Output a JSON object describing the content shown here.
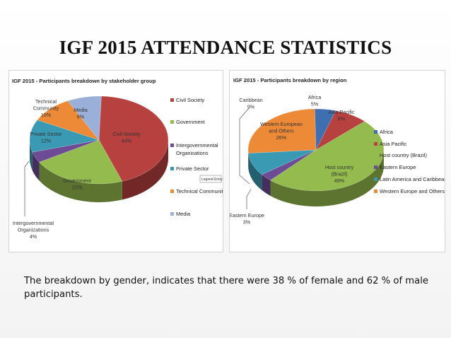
{
  "title": "IGF 2015 ATTENDANCE STATISTICS",
  "caption": "The breakdown by gender, indicates that there were 38 % of female and 62 % of male participants.",
  "tooltip": "Legend Entry 5",
  "chart_data": [
    {
      "type": "pie",
      "title": "IGF 2015 - Participants breakdown by stakeholder group",
      "legend_position": "right",
      "slices": [
        {
          "name": "Civil Society",
          "label_lines": [
            "Civil Society"
          ],
          "value": 44,
          "label": "44%",
          "color": "#b6413f"
        },
        {
          "name": "Government",
          "label_lines": [
            "Government"
          ],
          "value": 22,
          "label": "22%",
          "color": "#94bb4e"
        },
        {
          "name": "Intergovernmental Organisations",
          "label_lines": [
            "Intergovernmental",
            "Organizations"
          ],
          "value": 4,
          "label": "4%",
          "color": "#6d4c95"
        },
        {
          "name": "Private Sector",
          "label_lines": [
            "Private Sector"
          ],
          "value": 12,
          "label": "12%",
          "color": "#3a9ab3"
        },
        {
          "name": "Technical Community",
          "label_lines": [
            "Technical",
            "Community"
          ],
          "value": 10,
          "label": "10%",
          "color": "#ec8a37"
        },
        {
          "name": "Media",
          "label_lines": [
            "Media"
          ],
          "value": 8,
          "label": "8%",
          "color": "#9bb0d9"
        }
      ],
      "legend": [
        "Civil Society",
        "Government",
        "Intergovernmental Organisations",
        "Private Sector",
        "Technical Community",
        "Media"
      ]
    },
    {
      "type": "pie",
      "title": "IGF 2015 - Participants breakdown by region",
      "legend_position": "right",
      "slices": [
        {
          "name": "Africa",
          "label_lines": [
            "Africa"
          ],
          "value": 5,
          "label": "5%",
          "color": "#3f6fb0"
        },
        {
          "name": "Asia Pacific",
          "label_lines": [
            "Asia Pacific"
          ],
          "value": 8,
          "label": "8%",
          "color": "#b6413f"
        },
        {
          "name": "Host country (Brazil)",
          "label_lines": [
            "Host country",
            "(Brazil)"
          ],
          "value": 49,
          "label": "49%",
          "color": "#94bb4e"
        },
        {
          "name": "Eastern Europe",
          "label_lines": [
            "Eastern Europe"
          ],
          "value": 3,
          "label": "3%",
          "color": "#6d4c95"
        },
        {
          "name": "Latin America and Caribbean",
          "label_lines": [
            "Caribbean"
          ],
          "value": 9,
          "label": "9%",
          "color": "#3a9ab3"
        },
        {
          "name": "Western Europe and Others",
          "label_lines": [
            "Western European",
            "and Others"
          ],
          "value": 26,
          "label": "26%",
          "color": "#ec8a37"
        }
      ],
      "legend": [
        "Africa",
        "Asia Pacific",
        "Host country (Brazil)",
        "Eastern Europe",
        "Latin America and Caribbean",
        "Western Europe and Others"
      ]
    }
  ]
}
